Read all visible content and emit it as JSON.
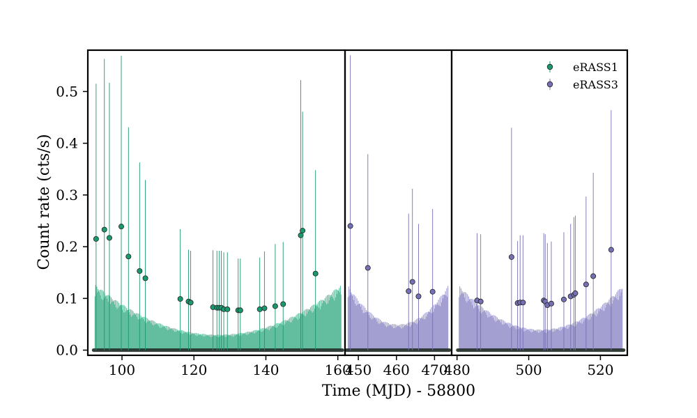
{
  "chart_data": {
    "type": "scatter",
    "xlabel": "Time (MJD) - 58800",
    "ylabel": "Count rate (cts/s)",
    "ylim": [
      -0.01,
      0.58
    ],
    "yticks": [
      "0.0",
      "0.1",
      "0.2",
      "0.3",
      "0.4",
      "0.5"
    ],
    "ytick_values": [
      0,
      0.1,
      0.2,
      0.3,
      0.4,
      0.5
    ],
    "legend_position": "top-right",
    "panels": [
      {
        "xlim": [
          90.5,
          162
        ],
        "xticks": [
          100,
          120,
          140,
          160
        ],
        "xtick_labels": [
          "100",
          "120",
          "140",
          "160"
        ]
      },
      {
        "xlim": [
          446.5,
          474.5
        ],
        "xticks": [
          450,
          460,
          470
        ],
        "xtick_labels": [
          "450",
          "460",
          "470"
        ]
      },
      {
        "xlim": [
          478.5,
          527.5
        ],
        "xticks": [
          480,
          500,
          520
        ],
        "xtick_labels": [
          "480",
          "500",
          "520"
        ]
      }
    ],
    "series": [
      {
        "name": "eRASS1",
        "color": "#1a9870",
        "fill_color": "#5bb99a",
        "upper_limit_band": {
          "start": 92.5,
          "end": 161,
          "edge": 0.127,
          "floor": 0.03,
          "period": 0.166
        },
        "points": [
          {
            "x": 92.8,
            "y": 0.215,
            "err": 0.3
          },
          {
            "x": 95.1,
            "y": 0.233,
            "err": 0.33
          },
          {
            "x": 96.5,
            "y": 0.217,
            "err": 0.3
          },
          {
            "x": 99.8,
            "y": 0.239,
            "err": 0.33
          },
          {
            "x": 101.8,
            "y": 0.181,
            "err": 0.25
          },
          {
            "x": 104.9,
            "y": 0.153,
            "err": 0.21
          },
          {
            "x": 106.5,
            "y": 0.139,
            "err": 0.19
          },
          {
            "x": 116.2,
            "y": 0.099,
            "err": 0.135
          },
          {
            "x": 118.5,
            "y": 0.094,
            "err": 0.1
          },
          {
            "x": 119.1,
            "y": 0.092,
            "err": 0.1
          },
          {
            "x": 125.3,
            "y": 0.083,
            "err": 0.11
          },
          {
            "x": 126.4,
            "y": 0.082,
            "err": 0.11
          },
          {
            "x": 127.0,
            "y": 0.082,
            "err": 0.11
          },
          {
            "x": 127.6,
            "y": 0.082,
            "err": 0.11
          },
          {
            "x": 128.3,
            "y": 0.079,
            "err": 0.11
          },
          {
            "x": 129.3,
            "y": 0.079,
            "err": 0.11
          },
          {
            "x": 132.3,
            "y": 0.077,
            "err": 0.1
          },
          {
            "x": 132.9,
            "y": 0.077,
            "err": 0.1
          },
          {
            "x": 138.3,
            "y": 0.079,
            "err": 0.1
          },
          {
            "x": 139.6,
            "y": 0.081,
            "err": 0.11
          },
          {
            "x": 142.6,
            "y": 0.085,
            "err": 0.12
          },
          {
            "x": 144.8,
            "y": 0.089,
            "err": 0.12
          },
          {
            "x": 149.7,
            "y": 0.222,
            "err": 0.3
          },
          {
            "x": 150.2,
            "y": 0.231,
            "err": 0.23
          },
          {
            "x": 153.8,
            "y": 0.148,
            "err": 0.2
          }
        ]
      },
      {
        "name": "eRASS3",
        "color": "#7570b3",
        "fill_color": "#9e9acd",
        "upper_limit_band": {
          "start": 447.3,
          "end": 473.6,
          "edge": 0.125,
          "floor": 0.05,
          "period": 0.166
        },
        "upper_limit_band_b": {
          "start": 480.6,
          "end": 526.2,
          "edge": 0.125,
          "floor": 0.04,
          "period": 0.166
        },
        "points": [
          {
            "x": 447.9,
            "y": 0.24,
            "err": 0.33
          },
          {
            "x": 452.5,
            "y": 0.159,
            "err": 0.22
          },
          {
            "x": 463.2,
            "y": 0.114,
            "err": 0.15
          },
          {
            "x": 464.2,
            "y": 0.132,
            "err": 0.18
          },
          {
            "x": 465.8,
            "y": 0.104,
            "err": 0.14
          },
          {
            "x": 469.5,
            "y": 0.113,
            "err": 0.16
          },
          {
            "x": 485.6,
            "y": 0.096,
            "err": 0.13
          },
          {
            "x": 486.6,
            "y": 0.094,
            "err": 0.13
          },
          {
            "x": 495.2,
            "y": 0.18,
            "err": 0.25
          },
          {
            "x": 496.9,
            "y": 0.091,
            "err": 0.12
          },
          {
            "x": 497.6,
            "y": 0.092,
            "err": 0.13
          },
          {
            "x": 498.4,
            "y": 0.092,
            "err": 0.13
          },
          {
            "x": 504.2,
            "y": 0.096,
            "err": 0.13
          },
          {
            "x": 504.6,
            "y": 0.094,
            "err": 0.13
          },
          {
            "x": 505.2,
            "y": 0.087,
            "err": 0.12
          },
          {
            "x": 506.3,
            "y": 0.09,
            "err": 0.12
          },
          {
            "x": 509.8,
            "y": 0.098,
            "err": 0.13
          },
          {
            "x": 511.7,
            "y": 0.104,
            "err": 0.14
          },
          {
            "x": 512.6,
            "y": 0.107,
            "err": 0.15
          },
          {
            "x": 513.0,
            "y": 0.11,
            "err": 0.15
          },
          {
            "x": 516.0,
            "y": 0.127,
            "err": 0.17
          },
          {
            "x": 518.0,
            "y": 0.143,
            "err": 0.2
          },
          {
            "x": 523.0,
            "y": 0.194,
            "err": 0.27
          }
        ]
      }
    ]
  }
}
